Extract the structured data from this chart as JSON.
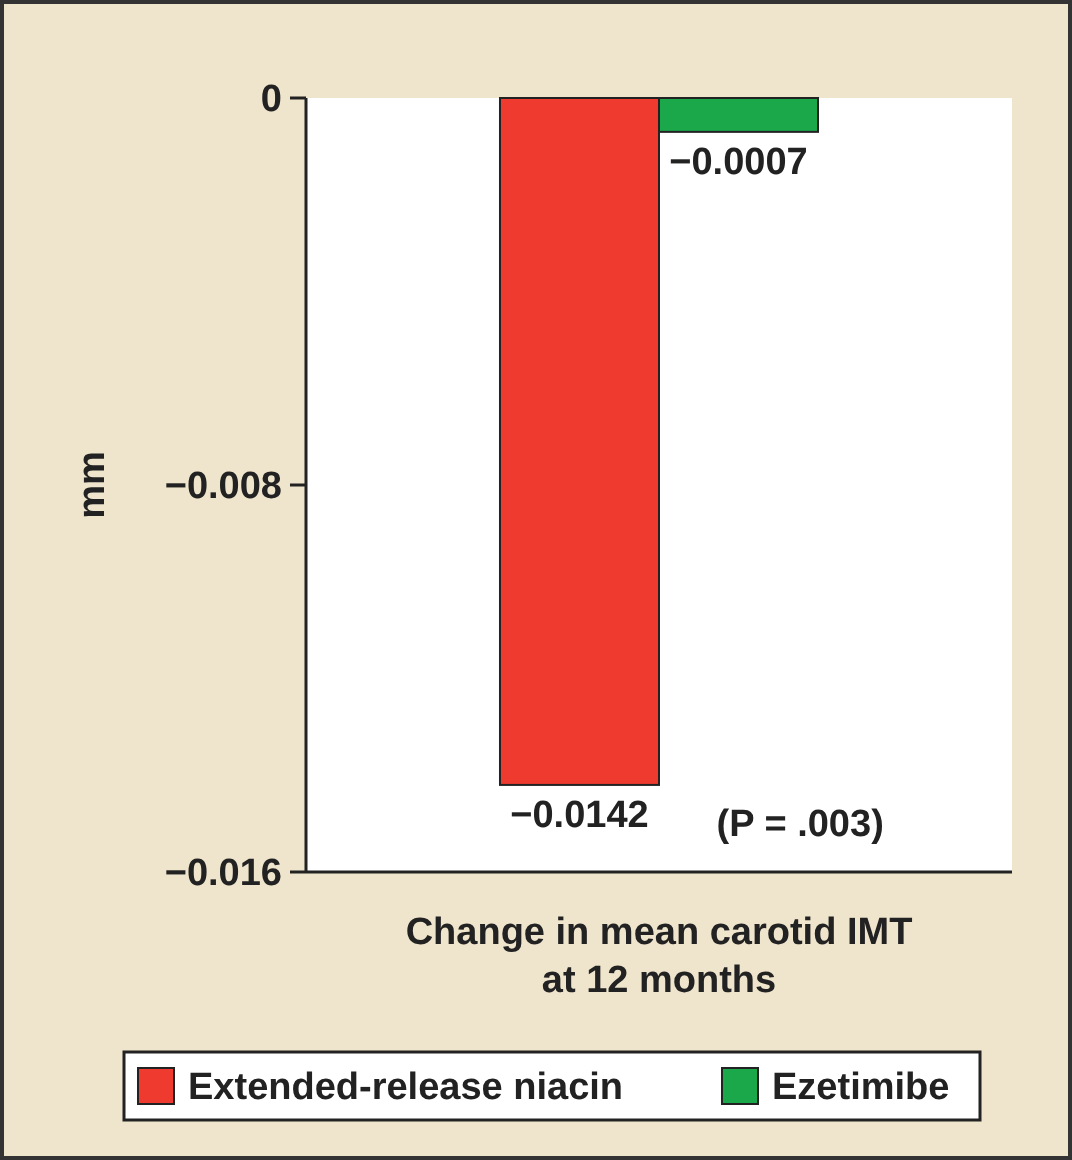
{
  "chart_data": {
    "type": "bar",
    "ylabel": "mm",
    "xlabel": "Change in mean carotid IMT at 12 months",
    "categories": [
      null
    ],
    "series": [
      {
        "name": "Extended-release niacin",
        "color": "#ee3a2f",
        "values": [
          -0.0142
        ],
        "value_labels": [
          "−0.0142"
        ]
      },
      {
        "name": "Ezetimibe",
        "color": "#1aa84b",
        "values": [
          -0.0007
        ],
        "value_labels": [
          "−0.0007"
        ]
      }
    ],
    "ylim": [
      -0.016,
      0
    ],
    "yticks": [
      {
        "value": 0,
        "label": "0"
      },
      {
        "value": -0.008,
        "label": "−0.008"
      },
      {
        "value": -0.016,
        "label": "−0.016"
      }
    ],
    "annotations": [
      "(P = .003)"
    ],
    "legend": "bottom",
    "grid": false
  }
}
